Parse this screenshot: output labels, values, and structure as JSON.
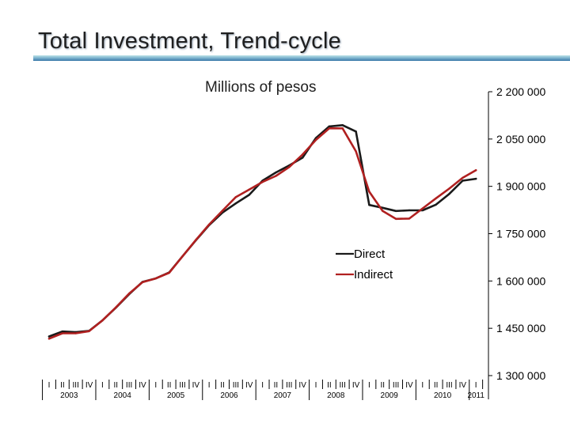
{
  "slide": {
    "title": "Total Investment, Trend-cycle"
  },
  "chart_data": {
    "type": "line",
    "title": "Total Investment, Trend-cycle",
    "subtitle": "Millions of pesos",
    "ylim": [
      1300000,
      2200000
    ],
    "yticks": [
      2200000,
      2050000,
      1900000,
      1750000,
      1600000,
      1450000,
      1300000
    ],
    "ytick_labels": [
      "2 200 000",
      "2 050 000",
      "1 900 000",
      "1 750 000",
      "1 600 000",
      "1 450 000",
      "1 300 000"
    ],
    "quarter_labels": [
      "I",
      "II",
      "III",
      "IV",
      "I",
      "II",
      "III",
      "IV",
      "I",
      "II",
      "III",
      "IV",
      "I",
      "II",
      "III",
      "IV",
      "I",
      "II",
      "III",
      "IV",
      "I",
      "II",
      "III",
      "IV",
      "I",
      "II",
      "III",
      "IV",
      "I",
      "II",
      "III",
      "IV",
      "I"
    ],
    "year_labels": [
      "2003",
      "2004",
      "2005",
      "2006",
      "2007",
      "2008",
      "2009",
      "2010",
      "2011"
    ],
    "year_label_quarter_index": [
      1.5,
      5.5,
      9.5,
      13.5,
      17.5,
      21.5,
      25.5,
      29.5,
      32
    ],
    "series": [
      {
        "name": "Direct",
        "color": "#1a1a1a",
        "values": [
          1424000,
          1440000,
          1438000,
          1442000,
          1475000,
          1515000,
          1558000,
          1597000,
          1608000,
          1627000,
          1678000,
          1729000,
          1777000,
          1817000,
          1846000,
          1873000,
          1918000,
          1944000,
          1966000,
          1991000,
          2053000,
          2090000,
          2094000,
          2074000,
          1841000,
          1832000,
          1822000,
          1824000,
          1824000,
          1842000,
          1876000,
          1918000,
          1924000
        ]
      },
      {
        "name": "Indirect",
        "color": "#b02020",
        "values": [
          1417000,
          1434000,
          1434000,
          1441000,
          1475000,
          1516000,
          1560000,
          1596000,
          1608000,
          1626000,
          1678000,
          1730000,
          1779000,
          1823000,
          1866000,
          1890000,
          1914000,
          1933000,
          1961000,
          2001000,
          2047000,
          2084000,
          2084000,
          2011000,
          1883000,
          1822000,
          1797000,
          1798000,
          1830000,
          1862000,
          1893000,
          1927000,
          1951000
        ]
      }
    ],
    "legend_position": "center-right"
  }
}
